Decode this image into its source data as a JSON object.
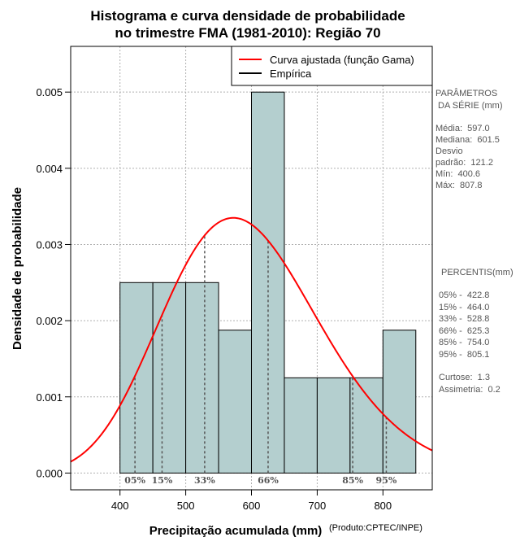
{
  "chart_data": {
    "type": "bar",
    "title_lines": [
      "Histograma e curva densidade de probabilidade",
      "no trimestre FMA (1981-2010): Região 70"
    ],
    "xlabel": "Precipitação acumulada (mm)",
    "ylabel": "Densidade de probabilidade",
    "credit": "(Produto:CPTEC/INPE)",
    "xlim": [
      325,
      875
    ],
    "ylim": [
      -0.00022,
      0.0056
    ],
    "x_ticks": [
      400,
      500,
      600,
      700,
      800
    ],
    "y_ticks": [
      0.0,
      0.001,
      0.002,
      0.003,
      0.004,
      0.005
    ],
    "y_tick_labels": [
      "0.000",
      "0.001",
      "0.002",
      "0.003",
      "0.004",
      "0.005"
    ],
    "grid": true,
    "bins": [
      {
        "x0": 400,
        "x1": 450,
        "density": 0.0025
      },
      {
        "x0": 450,
        "x1": 500,
        "density": 0.0025
      },
      {
        "x0": 500,
        "x1": 550,
        "density": 0.0025
      },
      {
        "x0": 550,
        "x1": 600,
        "density": 0.001875
      },
      {
        "x0": 600,
        "x1": 650,
        "density": 0.005
      },
      {
        "x0": 650,
        "x1": 700,
        "density": 0.00125
      },
      {
        "x0": 700,
        "x1": 750,
        "density": 0.00125
      },
      {
        "x0": 750,
        "x1": 800,
        "density": 0.00125
      },
      {
        "x0": 800,
        "x1": 850,
        "density": 0.001875
      }
    ],
    "gamma_fit": {
      "mean": 597.0,
      "sd": 121.2
    },
    "legend": {
      "position": "top-right",
      "entries": [
        {
          "label": "Curva ajustada (função Gama)",
          "color": "#ff0000"
        },
        {
          "label": "Empírica",
          "color": "#000000"
        }
      ]
    },
    "percentiles": [
      {
        "label": "05%",
        "value": 422.8
      },
      {
        "label": "15%",
        "value": 464.0
      },
      {
        "label": "33%",
        "value": 528.8
      },
      {
        "label": "66%",
        "value": 625.3
      },
      {
        "label": "85%",
        "value": 754.0
      },
      {
        "label": "95%",
        "value": 805.1
      }
    ],
    "colors": {
      "bar_fill": "#b4cfcf",
      "bar_stroke": "#000000",
      "curve": "#ff0000",
      "grid": "#b0b0b0",
      "percentile_line": "#555555"
    }
  },
  "side_panel": {
    "params_title": [
      "PARÂMETROS",
      " DA SÉRIE (mm)"
    ],
    "params": [
      "Média:  597.0",
      "Mediana:  601.5",
      "Desvio",
      "padrão:  121.2",
      "Mín:  400.6",
      "Máx:  807.8"
    ],
    "percentis_title": "PERCENTIS(mm)",
    "percentis": [
      "05% -  422.8",
      "15% -  464.0",
      "33% -  528.8",
      "66% -  625.3",
      "85% -  754.0",
      "95% -  805.1"
    ],
    "stats": [
      "Curtose:  1.3",
      "Assimetria:  0.2"
    ]
  }
}
